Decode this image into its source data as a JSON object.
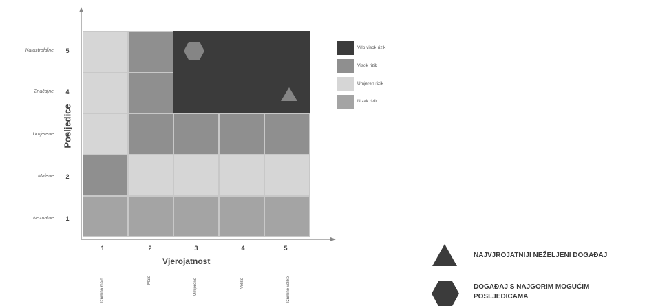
{
  "y_axis": {
    "title": "Posljedice",
    "levels": [
      {
        "num": "5",
        "name": "Katastrofalne"
      },
      {
        "num": "4",
        "name": "Značajne"
      },
      {
        "num": "3",
        "name": "Umjerene"
      },
      {
        "num": "2",
        "name": "Malene"
      },
      {
        "num": "1",
        "name": "Neznatne"
      }
    ]
  },
  "x_axis": {
    "title": "Vjerojatnost",
    "levels": [
      {
        "num": "1",
        "name": "Iznimno malo"
      },
      {
        "num": "2",
        "name": "Malo"
      },
      {
        "num": "3",
        "name": "Umjereno"
      },
      {
        "num": "4",
        "name": "Veliko"
      },
      {
        "num": "5",
        "name": "Iznimno veliko"
      }
    ]
  },
  "matrix": [
    [
      "umjeren",
      "visok",
      "vrlo_visok",
      "vrlo_visok",
      "vrlo_visok"
    ],
    [
      "umjeren",
      "visok",
      "vrlo_visok",
      "vrlo_visok",
      "vrlo_visok"
    ],
    [
      "umjeren",
      "visok",
      "visok",
      "visok",
      "visok"
    ],
    [
      "visok",
      "umjeren",
      "umjeren",
      "umjeren",
      "umjeren"
    ],
    [
      "nizak",
      "nizak",
      "nizak",
      "nizak",
      "nizak"
    ]
  ],
  "colors": {
    "vrlo_visok": "#3b3b3b",
    "visok": "#8f8f8f",
    "umjeren": "#d6d6d6",
    "nizak": "#a4a4a4",
    "marker": "#858585"
  },
  "risk_legend": [
    {
      "key": "vrlo_visok",
      "label": "Vrlo visok rizik"
    },
    {
      "key": "visok",
      "label": "Visok rizik"
    },
    {
      "key": "umjeren",
      "label": "Umjeren rizik"
    },
    {
      "key": "nizak",
      "label": "Nizak rizik"
    }
  ],
  "markers": {
    "hexagon": {
      "probability": 3,
      "consequence": 5
    },
    "triangle": {
      "probability": 5,
      "consequence": 4
    }
  },
  "symbol_legend": {
    "triangle_label": "NAJVJROJATNIJI NEŽELJENI DOGAĐAJ",
    "hexagon_label_1": "DOGAĐAJ S NAJGORIM MOGUĆIM",
    "hexagon_label_2": "POSLJEDICAMA"
  }
}
